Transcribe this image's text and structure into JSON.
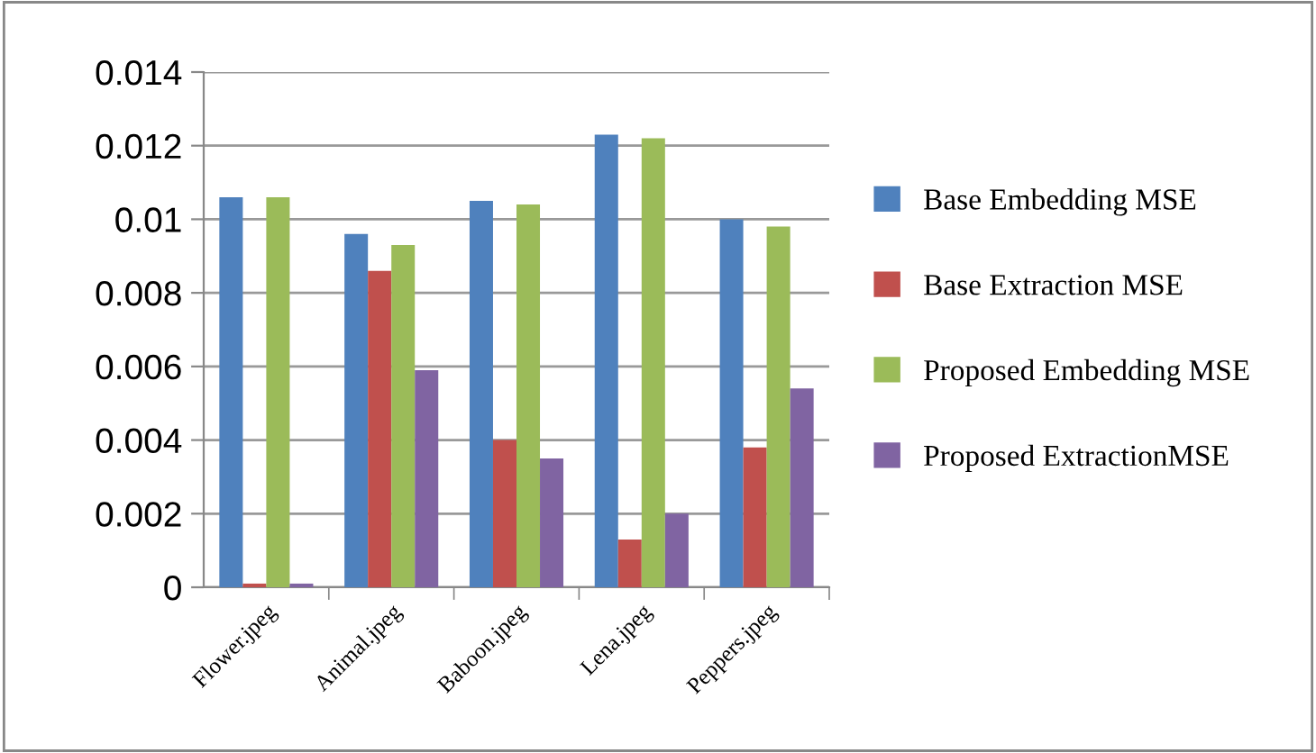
{
  "chart_data": {
    "type": "bar",
    "categories": [
      "Flower.jpeg",
      "Animal.jpeg",
      "Baboon.jpeg",
      "Lena.jpeg",
      "Peppers.jpeg"
    ],
    "series": [
      {
        "name": "Base Embedding MSE",
        "color": "#4f81bd",
        "values": [
          0.0106,
          0.0096,
          0.0105,
          0.0123,
          0.01
        ]
      },
      {
        "name": "Base Extraction MSE",
        "color": "#c0504d",
        "values": [
          0.0001,
          0.0086,
          0.004,
          0.0013,
          0.0038
        ]
      },
      {
        "name": "Proposed Embedding MSE",
        "color": "#9bbb59",
        "values": [
          0.0106,
          0.0093,
          0.0104,
          0.0122,
          0.0098
        ]
      },
      {
        "name": "Proposed ExtractionMSE",
        "color": "#8064a2",
        "values": [
          0.0001,
          0.0059,
          0.0035,
          0.002,
          0.0054
        ]
      }
    ],
    "ylim": [
      0,
      0.014
    ],
    "yticks": [
      0,
      0.002,
      0.004,
      0.006,
      0.008,
      0.01,
      0.012,
      0.014
    ],
    "grid": "y",
    "legend": "right"
  }
}
